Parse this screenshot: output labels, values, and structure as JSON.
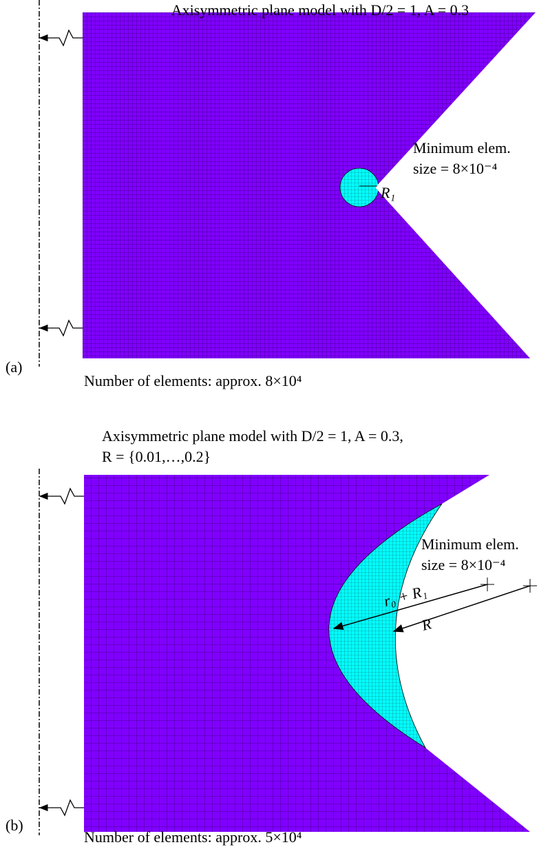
{
  "panel_a": {
    "label": "(a)",
    "title": "Axisymmetric plane model with D/2 = 1, A = 0.3",
    "min_elem_label": "Minimum elem.",
    "min_elem_size": "size = 8×10⁻⁴",
    "radius_label": "R₁",
    "footer": "Number of elements: approx. 8×10⁴"
  },
  "panel_b": {
    "label": "(b)",
    "title_line1": "Axisymmetric plane model with D/2 = 1, A = 0.3,",
    "title_line2": "R = {0.01,…,0.2}",
    "min_elem_label": "Minimum elem.",
    "min_elem_size": "size = 8×10⁻⁴",
    "dim_label_1": "r₀ + R₁",
    "dim_label_2": "R",
    "footer": "Number of elements: approx. 5×10⁴"
  }
}
